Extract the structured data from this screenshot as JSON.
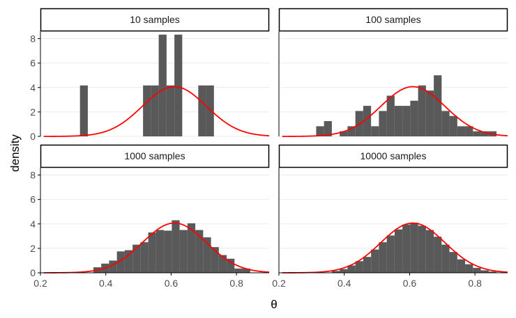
{
  "figure": {
    "xlabel": "θ",
    "ylabel": "density"
  },
  "colors": {
    "bar": "#595959",
    "curve": "#ff0000",
    "grid": "#ebebeb",
    "strip_border": "#000000",
    "axis": "#000000",
    "tick_text": "#4d4d4d"
  },
  "chart_data": {
    "type": "bar",
    "subtype": "faceted-histogram-with-density-curve",
    "xlim": [
      0.2,
      0.9
    ],
    "ylim": [
      0,
      8.6
    ],
    "x_ticks": [
      0.2,
      0.4,
      0.6,
      0.8
    ],
    "x_tick_labels": [
      "0.2",
      "0.4",
      "0.6",
      "0.8"
    ],
    "y_ticks": [
      0,
      2,
      4,
      6,
      8
    ],
    "y_tick_labels": [
      "0",
      "2",
      "4",
      "6",
      "8"
    ],
    "grid": "horizontal major",
    "bin_width": 0.024,
    "curve": {
      "mean": 0.61,
      "sd": 0.098,
      "x_range": [
        0.21,
        0.9
      ],
      "peak_density": 4.07
    },
    "panels": [
      {
        "strip": "10 samples",
        "bins": [
          {
            "x0": 0.321,
            "x1": 0.345,
            "density": 4.17
          },
          {
            "x0": 0.514,
            "x1": 0.538,
            "density": 4.17
          },
          {
            "x0": 0.538,
            "x1": 0.562,
            "density": 4.17
          },
          {
            "x0": 0.562,
            "x1": 0.586,
            "density": 8.33
          },
          {
            "x0": 0.586,
            "x1": 0.61,
            "density": 4.17
          },
          {
            "x0": 0.61,
            "x1": 0.634,
            "density": 8.33
          },
          {
            "x0": 0.683,
            "x1": 0.707,
            "density": 4.17
          },
          {
            "x0": 0.707,
            "x1": 0.731,
            "density": 4.17
          }
        ]
      },
      {
        "strip": "100 samples",
        "bins": [
          {
            "x0": 0.314,
            "x1": 0.338,
            "density": 0.83
          },
          {
            "x0": 0.338,
            "x1": 0.362,
            "density": 1.25
          },
          {
            "x0": 0.386,
            "x1": 0.41,
            "density": 0.42
          },
          {
            "x0": 0.41,
            "x1": 0.434,
            "density": 0.83
          },
          {
            "x0": 0.434,
            "x1": 0.458,
            "density": 2.08
          },
          {
            "x0": 0.458,
            "x1": 0.482,
            "density": 2.5
          },
          {
            "x0": 0.482,
            "x1": 0.506,
            "density": 0.83
          },
          {
            "x0": 0.506,
            "x1": 0.53,
            "density": 2.08
          },
          {
            "x0": 0.53,
            "x1": 0.554,
            "density": 3.33
          },
          {
            "x0": 0.554,
            "x1": 0.578,
            "density": 2.5
          },
          {
            "x0": 0.578,
            "x1": 0.602,
            "density": 2.5
          },
          {
            "x0": 0.602,
            "x1": 0.626,
            "density": 2.92
          },
          {
            "x0": 0.626,
            "x1": 0.65,
            "density": 4.17
          },
          {
            "x0": 0.65,
            "x1": 0.674,
            "density": 3.75
          },
          {
            "x0": 0.674,
            "x1": 0.698,
            "density": 5.0
          },
          {
            "x0": 0.698,
            "x1": 0.722,
            "density": 2.08
          },
          {
            "x0": 0.722,
            "x1": 0.746,
            "density": 1.67
          },
          {
            "x0": 0.746,
            "x1": 0.77,
            "density": 0.83
          },
          {
            "x0": 0.77,
            "x1": 0.794,
            "density": 0.83
          },
          {
            "x0": 0.794,
            "x1": 0.818,
            "density": 0.42
          },
          {
            "x0": 0.818,
            "x1": 0.842,
            "density": 0.42
          },
          {
            "x0": 0.842,
            "x1": 0.866,
            "density": 0.42
          }
        ]
      },
      {
        "strip": "1000 samples",
        "bins": [
          {
            "x0": 0.362,
            "x1": 0.386,
            "density": 0.45
          },
          {
            "x0": 0.386,
            "x1": 0.41,
            "density": 0.75
          },
          {
            "x0": 0.41,
            "x1": 0.434,
            "density": 1.0
          },
          {
            "x0": 0.434,
            "x1": 0.458,
            "density": 1.75
          },
          {
            "x0": 0.458,
            "x1": 0.482,
            "density": 1.85
          },
          {
            "x0": 0.482,
            "x1": 0.506,
            "density": 2.3
          },
          {
            "x0": 0.506,
            "x1": 0.53,
            "density": 2.5
          },
          {
            "x0": 0.53,
            "x1": 0.554,
            "density": 3.3
          },
          {
            "x0": 0.554,
            "x1": 0.578,
            "density": 3.5
          },
          {
            "x0": 0.578,
            "x1": 0.602,
            "density": 3.45
          },
          {
            "x0": 0.602,
            "x1": 0.626,
            "density": 4.3
          },
          {
            "x0": 0.626,
            "x1": 0.65,
            "density": 3.5
          },
          {
            "x0": 0.65,
            "x1": 0.674,
            "density": 4.05
          },
          {
            "x0": 0.674,
            "x1": 0.698,
            "density": 3.5
          },
          {
            "x0": 0.698,
            "x1": 0.722,
            "density": 2.9
          },
          {
            "x0": 0.722,
            "x1": 0.746,
            "density": 2.1
          },
          {
            "x0": 0.746,
            "x1": 0.77,
            "density": 1.45
          },
          {
            "x0": 0.77,
            "x1": 0.794,
            "density": 1.15
          },
          {
            "x0": 0.794,
            "x1": 0.818,
            "density": 0.35
          },
          {
            "x0": 0.818,
            "x1": 0.842,
            "density": 0.35
          }
        ]
      },
      {
        "strip": "10000 samples",
        "bins": [
          {
            "x0": 0.362,
            "x1": 0.386,
            "density": 0.15
          },
          {
            "x0": 0.386,
            "x1": 0.41,
            "density": 0.3
          },
          {
            "x0": 0.41,
            "x1": 0.434,
            "density": 0.6
          },
          {
            "x0": 0.434,
            "x1": 0.458,
            "density": 0.95
          },
          {
            "x0": 0.458,
            "x1": 0.482,
            "density": 1.3
          },
          {
            "x0": 0.482,
            "x1": 0.506,
            "density": 1.9
          },
          {
            "x0": 0.506,
            "x1": 0.53,
            "density": 2.5
          },
          {
            "x0": 0.53,
            "x1": 0.554,
            "density": 3.05
          },
          {
            "x0": 0.554,
            "x1": 0.578,
            "density": 3.55
          },
          {
            "x0": 0.578,
            "x1": 0.602,
            "density": 3.95
          },
          {
            "x0": 0.602,
            "x1": 0.626,
            "density": 4.1
          },
          {
            "x0": 0.626,
            "x1": 0.65,
            "density": 3.85
          },
          {
            "x0": 0.65,
            "x1": 0.674,
            "density": 3.5
          },
          {
            "x0": 0.674,
            "x1": 0.698,
            "density": 2.95
          },
          {
            "x0": 0.698,
            "x1": 0.722,
            "density": 2.3
          },
          {
            "x0": 0.722,
            "x1": 0.746,
            "density": 1.7
          },
          {
            "x0": 0.746,
            "x1": 0.77,
            "density": 1.1
          },
          {
            "x0": 0.77,
            "x1": 0.794,
            "density": 0.7
          },
          {
            "x0": 0.794,
            "x1": 0.818,
            "density": 0.4
          },
          {
            "x0": 0.818,
            "x1": 0.842,
            "density": 0.2
          },
          {
            "x0": 0.842,
            "x1": 0.866,
            "density": 0.1
          }
        ]
      }
    ]
  }
}
